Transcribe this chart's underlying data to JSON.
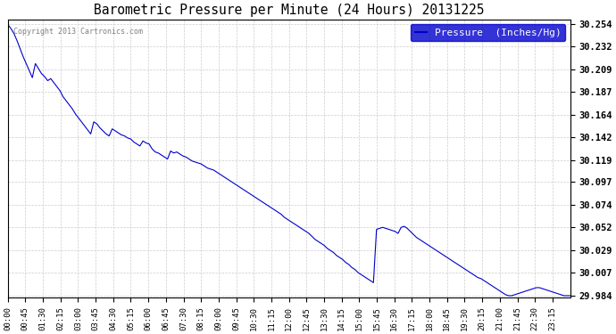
{
  "title": "Barometric Pressure per Minute (24 Hours) 20131225",
  "copyright_text": "Copyright 2013 Cartronics.com",
  "legend_label": "Pressure  (Inches/Hg)",
  "line_color": "#0000cc",
  "background_color": "#ffffff",
  "grid_color": "#cccccc",
  "legend_bg_color": "#0000cc",
  "legend_text_color": "#ffffff",
  "ylim_min": 29.984,
  "ylim_max": 30.254,
  "yticks": [
    30.254,
    30.232,
    30.209,
    30.187,
    30.164,
    30.142,
    30.119,
    30.097,
    30.074,
    30.052,
    30.029,
    30.007,
    29.984
  ],
  "xtick_labels": [
    "00:00",
    "00:45",
    "01:30",
    "02:15",
    "03:00",
    "03:45",
    "04:30",
    "05:15",
    "06:00",
    "06:45",
    "07:30",
    "08:15",
    "09:00",
    "09:45",
    "10:30",
    "11:15",
    "12:00",
    "12:45",
    "13:30",
    "14:15",
    "15:00",
    "15:45",
    "16:30",
    "17:15",
    "18:00",
    "18:45",
    "19:30",
    "20:15",
    "21:00",
    "21:45",
    "22:30",
    "23:15"
  ],
  "pressure_data": [
    30.254,
    30.25,
    30.245,
    30.238,
    30.23,
    30.222,
    30.215,
    30.208,
    30.201,
    30.215,
    30.21,
    30.205,
    30.202,
    30.198,
    30.2,
    30.196,
    30.192,
    30.188,
    30.182,
    30.178,
    30.174,
    30.17,
    30.165,
    30.161,
    30.157,
    30.153,
    30.149,
    30.145,
    30.157,
    30.155,
    30.151,
    30.148,
    30.145,
    30.143,
    30.15,
    30.148,
    30.146,
    30.144,
    30.143,
    30.141,
    30.14,
    30.137,
    30.135,
    30.133,
    30.138,
    30.136,
    30.135,
    30.13,
    30.127,
    30.126,
    30.124,
    30.122,
    30.12,
    30.128,
    30.126,
    30.127,
    30.125,
    30.123,
    30.122,
    30.12,
    30.118,
    30.117,
    30.116,
    30.115,
    30.113,
    30.111,
    30.11,
    30.109,
    30.107,
    30.105,
    30.103,
    30.101,
    30.099,
    30.097,
    30.095,
    30.093,
    30.091,
    30.089,
    30.087,
    30.085,
    30.083,
    30.081,
    30.079,
    30.077,
    30.075,
    30.073,
    30.071,
    30.069,
    30.067,
    30.065,
    30.062,
    30.06,
    30.058,
    30.056,
    30.054,
    30.052,
    30.05,
    30.048,
    30.046,
    30.043,
    30.04,
    30.038,
    30.036,
    30.034,
    30.031,
    30.029,
    30.027,
    30.024,
    30.022,
    30.02,
    30.017,
    30.015,
    30.012,
    30.01,
    30.007,
    30.005,
    30.003,
    30.001,
    29.999,
    29.997,
    30.05,
    30.051,
    30.052,
    30.051,
    30.05,
    30.049,
    30.048,
    30.046,
    30.052,
    30.053,
    30.051,
    30.048,
    30.045,
    30.042,
    30.04,
    30.038,
    30.036,
    30.034,
    30.032,
    30.03,
    30.028,
    30.026,
    30.024,
    30.022,
    30.02,
    30.018,
    30.016,
    30.014,
    30.012,
    30.01,
    30.008,
    30.006,
    30.004,
    30.002,
    30.001,
    29.999,
    29.997,
    29.995,
    29.993,
    29.991,
    29.989,
    29.987,
    29.985,
    29.984,
    29.984,
    29.985,
    29.986,
    29.987,
    29.988,
    29.989,
    29.99,
    29.991,
    29.992,
    29.992,
    29.991,
    29.99,
    29.989,
    29.988,
    29.987,
    29.986,
    29.985,
    29.984,
    29.984,
    29.984
  ]
}
